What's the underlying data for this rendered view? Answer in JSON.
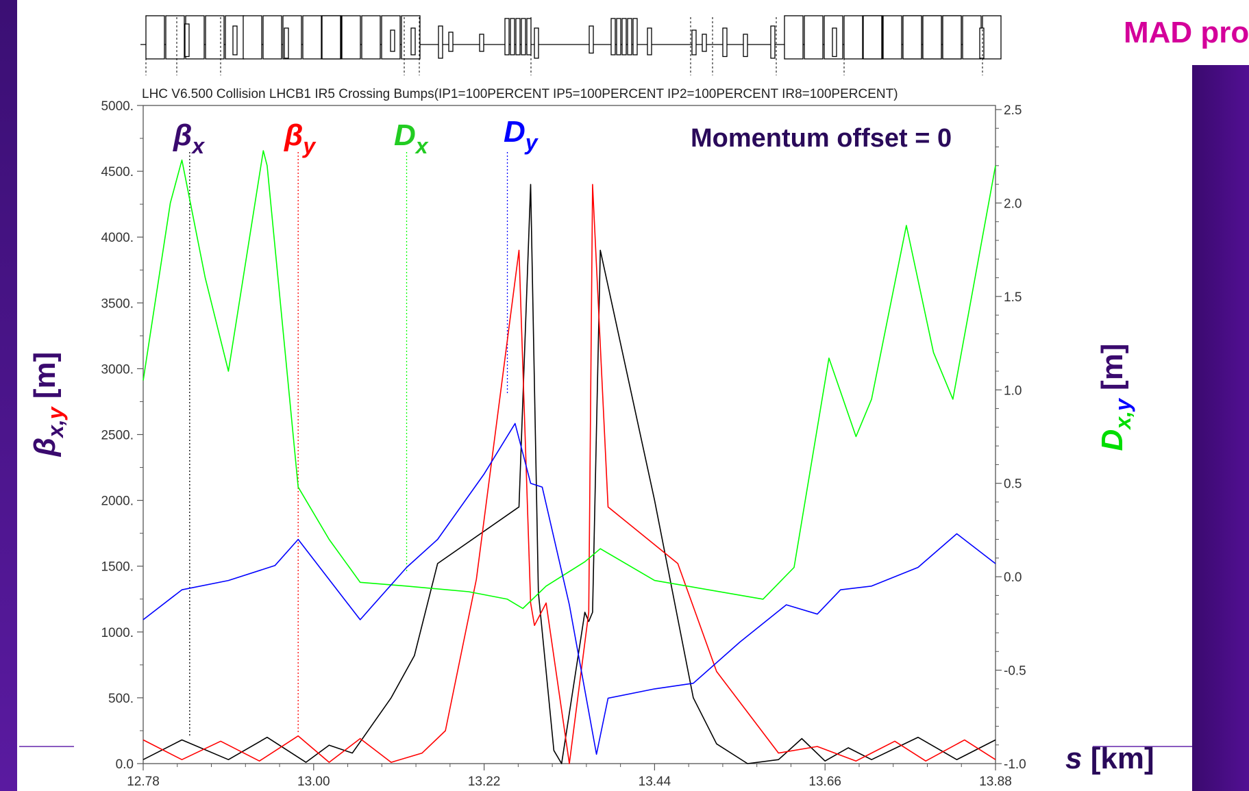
{
  "header_label": "MAD program",
  "plot_title": "LHC V6.500 Collision LHCB1 IR5 Crossing Bumps(IP1=100PERCENT IP5=100PERCENT IP2=100PERCENT IR8=100PERCENT)",
  "momentum_note": "Momentum offset = 0",
  "labels": {
    "betax_sym": "β",
    "betax_sub": "x",
    "betay_sym": "β",
    "betay_sub": "y",
    "dx_sym": "D",
    "dx_sub": "x",
    "dy_sym": "D",
    "dy_sub": "y",
    "ylabel_left_sym": "β",
    "ylabel_left_sub_x": "x",
    "ylabel_left_sub_comma": ",",
    "ylabel_left_sub_y": "y",
    "ylabel_left_unit": " [m]",
    "ylabel_right_sym": "D",
    "ylabel_right_sub_x": "x",
    "ylabel_right_sub_comma": ",",
    "ylabel_right_sub_y": "y",
    "ylabel_right_unit": " [m]",
    "xlabel_sym": "s",
    "xlabel_unit": " [km]"
  },
  "colors": {
    "beta_x": "#000000",
    "beta_y": "#ff0000",
    "d_x": "#00ff00",
    "d_y": "#0000ff",
    "header": "#d4009a",
    "note": "#2a0a5a",
    "label_beta_x": "#3a0a6e"
  },
  "chart_data": {
    "type": "line",
    "x_ticks": [
      "12.78",
      "13.00",
      "13.22",
      "13.44",
      "13.66",
      "13.88"
    ],
    "y_left_ticks": [
      "5000.",
      "4500.",
      "4000.",
      "3500.",
      "3000.",
      "2500.",
      "2000.",
      "1500.",
      "1000.",
      "500.",
      "0.0"
    ],
    "y_right_ticks": [
      "2.5",
      "2.0",
      "1.5",
      "1.0",
      "0.5",
      "0.0",
      "-0.5",
      "-1.0"
    ],
    "xlim": [
      12.78,
      13.88
    ],
    "ylim_left": [
      0,
      5000
    ],
    "ylim_right": [
      -1.0,
      2.5
    ],
    "markers": [
      {
        "key": "beta_x",
        "x": 12.84
      },
      {
        "key": "beta_y",
        "x": 12.98
      },
      {
        "key": "d_x",
        "x": 13.12
      },
      {
        "key": "d_y",
        "x": 13.25
      }
    ],
    "series": [
      {
        "key": "beta_x",
        "axis": "left",
        "points": [
          [
            12.78,
            30
          ],
          [
            12.83,
            180
          ],
          [
            12.89,
            30
          ],
          [
            12.94,
            200
          ],
          [
            12.99,
            10
          ],
          [
            13.02,
            140
          ],
          [
            13.05,
            80
          ],
          [
            13.1,
            500
          ],
          [
            13.13,
            820
          ],
          [
            13.16,
            1520
          ],
          [
            13.265,
            1950
          ],
          [
            13.28,
            4400
          ],
          [
            13.29,
            1300
          ],
          [
            13.31,
            100
          ],
          [
            13.32,
            0
          ],
          [
            13.35,
            1150
          ],
          [
            13.355,
            1080
          ],
          [
            13.36,
            1150
          ],
          [
            13.37,
            3900
          ],
          [
            13.44,
            2000
          ],
          [
            13.49,
            500
          ],
          [
            13.52,
            150
          ],
          [
            13.56,
            0
          ],
          [
            13.6,
            30
          ],
          [
            13.63,
            190
          ],
          [
            13.66,
            20
          ],
          [
            13.69,
            120
          ],
          [
            13.72,
            30
          ],
          [
            13.78,
            200
          ],
          [
            13.83,
            30
          ],
          [
            13.88,
            180
          ]
        ]
      },
      {
        "key": "beta_y",
        "axis": "left",
        "points": [
          [
            12.78,
            180
          ],
          [
            12.83,
            30
          ],
          [
            12.88,
            170
          ],
          [
            12.93,
            20
          ],
          [
            12.98,
            210
          ],
          [
            13.02,
            10
          ],
          [
            13.06,
            190
          ],
          [
            13.1,
            10
          ],
          [
            13.14,
            80
          ],
          [
            13.17,
            250
          ],
          [
            13.21,
            1400
          ],
          [
            13.265,
            3900
          ],
          [
            13.28,
            1220
          ],
          [
            13.285,
            1050
          ],
          [
            13.3,
            1220
          ],
          [
            13.33,
            0
          ],
          [
            13.355,
            1150
          ],
          [
            13.36,
            4400
          ],
          [
            13.38,
            1950
          ],
          [
            13.47,
            1520
          ],
          [
            13.52,
            700
          ],
          [
            13.6,
            80
          ],
          [
            13.65,
            130
          ],
          [
            13.7,
            20
          ],
          [
            13.75,
            170
          ],
          [
            13.79,
            20
          ],
          [
            13.84,
            180
          ],
          [
            13.88,
            30
          ]
        ]
      },
      {
        "key": "d_x",
        "axis": "right",
        "points": [
          [
            12.78,
            1.05
          ],
          [
            12.815,
            2.0
          ],
          [
            12.83,
            2.23
          ],
          [
            12.86,
            1.6
          ],
          [
            12.89,
            1.1
          ],
          [
            12.935,
            2.28
          ],
          [
            12.94,
            2.2
          ],
          [
            12.98,
            0.48
          ],
          [
            13.02,
            0.2
          ],
          [
            13.06,
            -0.03
          ],
          [
            13.12,
            -0.05
          ],
          [
            13.2,
            -0.08
          ],
          [
            13.25,
            -0.12
          ],
          [
            13.27,
            -0.17
          ],
          [
            13.3,
            -0.05
          ],
          [
            13.35,
            0.08
          ],
          [
            13.37,
            0.15
          ],
          [
            13.44,
            -0.02
          ],
          [
            13.58,
            -0.12
          ],
          [
            13.62,
            0.05
          ],
          [
            13.665,
            1.17
          ],
          [
            13.7,
            0.75
          ],
          [
            13.72,
            0.95
          ],
          [
            13.765,
            1.88
          ],
          [
            13.8,
            1.2
          ],
          [
            13.825,
            0.95
          ],
          [
            13.88,
            2.2
          ]
        ]
      },
      {
        "key": "d_y",
        "axis": "right",
        "points": [
          [
            12.78,
            -0.23
          ],
          [
            12.83,
            -0.07
          ],
          [
            12.89,
            -0.02
          ],
          [
            12.95,
            0.06
          ],
          [
            12.98,
            0.2
          ],
          [
            13.06,
            -0.23
          ],
          [
            13.12,
            0.05
          ],
          [
            13.16,
            0.2
          ],
          [
            13.22,
            0.55
          ],
          [
            13.26,
            0.82
          ],
          [
            13.28,
            0.5
          ],
          [
            13.295,
            0.48
          ],
          [
            13.33,
            -0.15
          ],
          [
            13.365,
            -0.95
          ],
          [
            13.38,
            -0.65
          ],
          [
            13.44,
            -0.6
          ],
          [
            13.49,
            -0.57
          ],
          [
            13.55,
            -0.35
          ],
          [
            13.61,
            -0.15
          ],
          [
            13.65,
            -0.2
          ],
          [
            13.68,
            -0.07
          ],
          [
            13.72,
            -0.05
          ],
          [
            13.78,
            0.05
          ],
          [
            13.83,
            0.23
          ],
          [
            13.88,
            0.07
          ]
        ]
      }
    ]
  }
}
